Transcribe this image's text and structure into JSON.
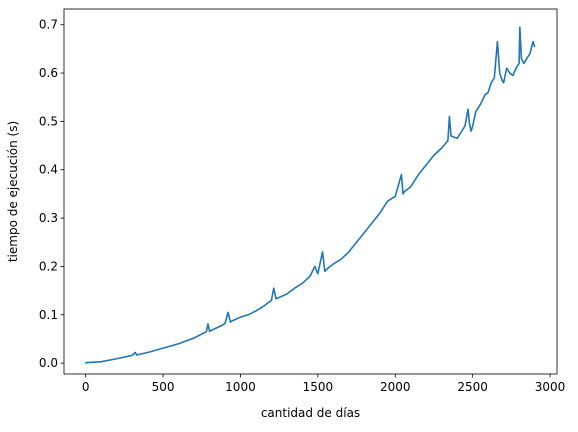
{
  "chart_data": {
    "type": "line",
    "title": "",
    "xlabel": "cantidad de días",
    "ylabel": "tiempo de ejecución (s)",
    "xlim": [
      -140,
      3045
    ],
    "ylim": [
      -0.0225,
      0.7325
    ],
    "xticks": [
      0,
      500,
      1000,
      1500,
      2000,
      2500,
      3000
    ],
    "xtick_labels": [
      "0",
      "500",
      "1000",
      "1500",
      "2000",
      "2500",
      "3000"
    ],
    "yticks": [
      0.0,
      0.1,
      0.2,
      0.3,
      0.4,
      0.5,
      0.6,
      0.7
    ],
    "ytick_labels": [
      "0.0",
      "0.1",
      "0.2",
      "0.3",
      "0.4",
      "0.5",
      "0.6",
      "0.7"
    ],
    "grid": false,
    "legend": "none",
    "series": [
      {
        "color": "#1f77b4",
        "x": [
          0,
          100,
          200,
          300,
          320,
          330,
          400,
          500,
          600,
          700,
          780,
          790,
          800,
          880,
          900,
          920,
          935,
          950,
          1000,
          1050,
          1100,
          1150,
          1200,
          1215,
          1230,
          1300,
          1350,
          1400,
          1450,
          1480,
          1500,
          1530,
          1545,
          1560,
          1600,
          1650,
          1700,
          1750,
          1800,
          1850,
          1900,
          1950,
          2000,
          2040,
          2050,
          2060,
          2100,
          2150,
          2200,
          2250,
          2300,
          2340,
          2350,
          2360,
          2400,
          2450,
          2470,
          2480,
          2490,
          2500,
          2520,
          2550,
          2580,
          2600,
          2620,
          2640,
          2660,
          2675,
          2690,
          2700,
          2720,
          2740,
          2760,
          2780,
          2800,
          2805,
          2815,
          2830,
          2850,
          2870,
          2890,
          2900
        ],
        "y": [
          0.001,
          0.003,
          0.009,
          0.016,
          0.022,
          0.017,
          0.022,
          0.031,
          0.04,
          0.052,
          0.065,
          0.081,
          0.066,
          0.078,
          0.082,
          0.105,
          0.085,
          0.088,
          0.095,
          0.1,
          0.108,
          0.118,
          0.13,
          0.155,
          0.133,
          0.143,
          0.155,
          0.165,
          0.18,
          0.2,
          0.185,
          0.23,
          0.19,
          0.195,
          0.205,
          0.215,
          0.23,
          0.25,
          0.27,
          0.29,
          0.31,
          0.335,
          0.345,
          0.39,
          0.35,
          0.355,
          0.365,
          0.39,
          0.41,
          0.43,
          0.445,
          0.46,
          0.51,
          0.47,
          0.465,
          0.49,
          0.525,
          0.495,
          0.48,
          0.49,
          0.52,
          0.535,
          0.555,
          0.56,
          0.58,
          0.59,
          0.665,
          0.6,
          0.585,
          0.58,
          0.61,
          0.6,
          0.595,
          0.61,
          0.62,
          0.695,
          0.63,
          0.62,
          0.63,
          0.64,
          0.665,
          0.655
        ]
      }
    ]
  }
}
